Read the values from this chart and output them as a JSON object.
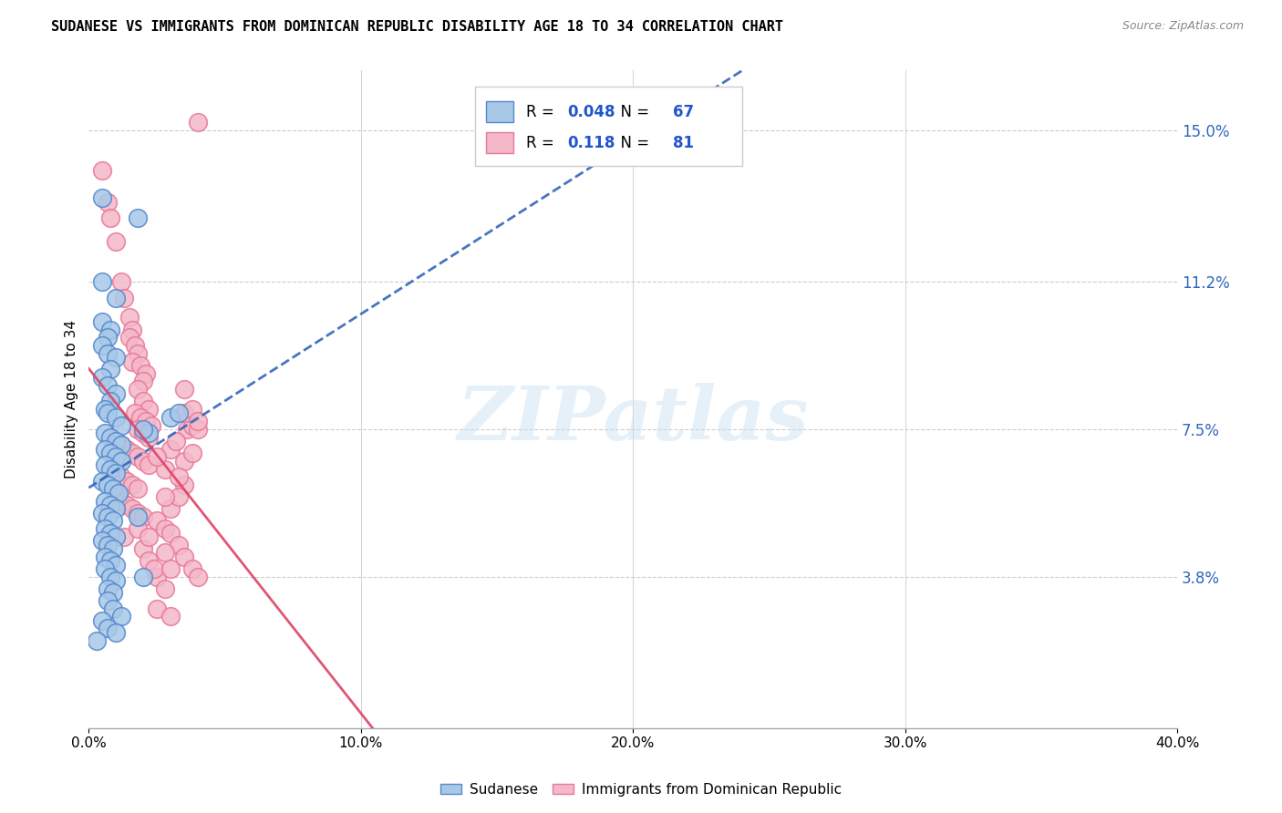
{
  "title": "SUDANESE VS IMMIGRANTS FROM DOMINICAN REPUBLIC DISABILITY AGE 18 TO 34 CORRELATION CHART",
  "source": "Source: ZipAtlas.com",
  "ylabel": "Disability Age 18 to 34",
  "xlim": [
    0.0,
    0.4
  ],
  "ylim": [
    0.0,
    0.165
  ],
  "xtick_labels": [
    "0.0%",
    "10.0%",
    "20.0%",
    "30.0%",
    "40.0%"
  ],
  "xtick_values": [
    0.0,
    0.1,
    0.2,
    0.3,
    0.4
  ],
  "ytick_right_labels": [
    "3.8%",
    "7.5%",
    "11.2%",
    "15.0%"
  ],
  "ytick_right_values": [
    0.038,
    0.075,
    0.112,
    0.15
  ],
  "blue_color": "#a8c8e8",
  "blue_edge_color": "#5588cc",
  "pink_color": "#f4b8c8",
  "pink_edge_color": "#e87898",
  "blue_line_color": "#3366bb",
  "pink_line_color": "#dd4466",
  "legend_R_blue": "0.048",
  "legend_N_blue": "67",
  "legend_R_pink": "0.118",
  "legend_N_pink": "81",
  "legend_label_blue": "Sudanese",
  "legend_label_pink": "Immigrants from Dominican Republic",
  "watermark": "ZIPatlas",
  "blue_points": [
    [
      0.005,
      0.133
    ],
    [
      0.018,
      0.128
    ],
    [
      0.005,
      0.112
    ],
    [
      0.01,
      0.108
    ],
    [
      0.005,
      0.102
    ],
    [
      0.008,
      0.1
    ],
    [
      0.007,
      0.098
    ],
    [
      0.005,
      0.096
    ],
    [
      0.007,
      0.094
    ],
    [
      0.01,
      0.093
    ],
    [
      0.008,
      0.09
    ],
    [
      0.005,
      0.088
    ],
    [
      0.007,
      0.086
    ],
    [
      0.01,
      0.084
    ],
    [
      0.008,
      0.082
    ],
    [
      0.006,
      0.08
    ],
    [
      0.007,
      0.079
    ],
    [
      0.01,
      0.078
    ],
    [
      0.012,
      0.076
    ],
    [
      0.006,
      0.074
    ],
    [
      0.008,
      0.073
    ],
    [
      0.01,
      0.072
    ],
    [
      0.012,
      0.071
    ],
    [
      0.006,
      0.07
    ],
    [
      0.008,
      0.069
    ],
    [
      0.01,
      0.068
    ],
    [
      0.012,
      0.067
    ],
    [
      0.006,
      0.066
    ],
    [
      0.008,
      0.065
    ],
    [
      0.01,
      0.064
    ],
    [
      0.005,
      0.062
    ],
    [
      0.007,
      0.061
    ],
    [
      0.009,
      0.06
    ],
    [
      0.011,
      0.059
    ],
    [
      0.006,
      0.057
    ],
    [
      0.008,
      0.056
    ],
    [
      0.01,
      0.055
    ],
    [
      0.005,
      0.054
    ],
    [
      0.007,
      0.053
    ],
    [
      0.009,
      0.052
    ],
    [
      0.006,
      0.05
    ],
    [
      0.008,
      0.049
    ],
    [
      0.01,
      0.048
    ],
    [
      0.005,
      0.047
    ],
    [
      0.007,
      0.046
    ],
    [
      0.009,
      0.045
    ],
    [
      0.006,
      0.043
    ],
    [
      0.008,
      0.042
    ],
    [
      0.01,
      0.041
    ],
    [
      0.006,
      0.04
    ],
    [
      0.008,
      0.038
    ],
    [
      0.01,
      0.037
    ],
    [
      0.007,
      0.035
    ],
    [
      0.009,
      0.034
    ],
    [
      0.007,
      0.032
    ],
    [
      0.009,
      0.03
    ],
    [
      0.012,
      0.028
    ],
    [
      0.005,
      0.027
    ],
    [
      0.007,
      0.025
    ],
    [
      0.01,
      0.024
    ],
    [
      0.003,
      0.022
    ],
    [
      0.018,
      0.053
    ],
    [
      0.022,
      0.074
    ],
    [
      0.02,
      0.075
    ],
    [
      0.03,
      0.078
    ],
    [
      0.033,
      0.079
    ],
    [
      0.02,
      0.038
    ]
  ],
  "pink_points": [
    [
      0.04,
      0.152
    ],
    [
      0.005,
      0.14
    ],
    [
      0.007,
      0.132
    ],
    [
      0.008,
      0.128
    ],
    [
      0.01,
      0.122
    ],
    [
      0.012,
      0.112
    ],
    [
      0.013,
      0.108
    ],
    [
      0.015,
      0.103
    ],
    [
      0.016,
      0.1
    ],
    [
      0.015,
      0.098
    ],
    [
      0.017,
      0.096
    ],
    [
      0.018,
      0.094
    ],
    [
      0.016,
      0.092
    ],
    [
      0.019,
      0.091
    ],
    [
      0.021,
      0.089
    ],
    [
      0.02,
      0.087
    ],
    [
      0.018,
      0.085
    ],
    [
      0.02,
      0.082
    ],
    [
      0.022,
      0.08
    ],
    [
      0.017,
      0.079
    ],
    [
      0.019,
      0.078
    ],
    [
      0.021,
      0.077
    ],
    [
      0.023,
      0.076
    ],
    [
      0.018,
      0.075
    ],
    [
      0.02,
      0.074
    ],
    [
      0.022,
      0.073
    ],
    [
      0.01,
      0.072
    ],
    [
      0.012,
      0.071
    ],
    [
      0.014,
      0.07
    ],
    [
      0.016,
      0.069
    ],
    [
      0.018,
      0.068
    ],
    [
      0.02,
      0.067
    ],
    [
      0.022,
      0.066
    ],
    [
      0.01,
      0.064
    ],
    [
      0.012,
      0.063
    ],
    [
      0.014,
      0.062
    ],
    [
      0.016,
      0.061
    ],
    [
      0.018,
      0.06
    ],
    [
      0.01,
      0.058
    ],
    [
      0.012,
      0.057
    ],
    [
      0.014,
      0.056
    ],
    [
      0.016,
      0.055
    ],
    [
      0.018,
      0.054
    ],
    [
      0.02,
      0.053
    ],
    [
      0.025,
      0.052
    ],
    [
      0.028,
      0.05
    ],
    [
      0.03,
      0.049
    ],
    [
      0.033,
      0.046
    ],
    [
      0.035,
      0.061
    ],
    [
      0.035,
      0.067
    ],
    [
      0.036,
      0.075
    ],
    [
      0.038,
      0.076
    ],
    [
      0.04,
      0.075
    ],
    [
      0.035,
      0.079
    ],
    [
      0.038,
      0.08
    ],
    [
      0.035,
      0.085
    ],
    [
      0.038,
      0.069
    ],
    [
      0.04,
      0.077
    ],
    [
      0.03,
      0.07
    ],
    [
      0.032,
      0.072
    ],
    [
      0.028,
      0.065
    ],
    [
      0.025,
      0.068
    ],
    [
      0.025,
      0.038
    ],
    [
      0.028,
      0.035
    ],
    [
      0.03,
      0.055
    ],
    [
      0.033,
      0.058
    ],
    [
      0.02,
      0.045
    ],
    [
      0.022,
      0.042
    ],
    [
      0.024,
      0.04
    ],
    [
      0.028,
      0.058
    ],
    [
      0.033,
      0.063
    ],
    [
      0.013,
      0.048
    ],
    [
      0.018,
      0.05
    ],
    [
      0.022,
      0.048
    ],
    [
      0.028,
      0.044
    ],
    [
      0.03,
      0.04
    ],
    [
      0.035,
      0.043
    ],
    [
      0.038,
      0.04
    ],
    [
      0.04,
      0.038
    ],
    [
      0.025,
      0.03
    ],
    [
      0.03,
      0.028
    ]
  ]
}
